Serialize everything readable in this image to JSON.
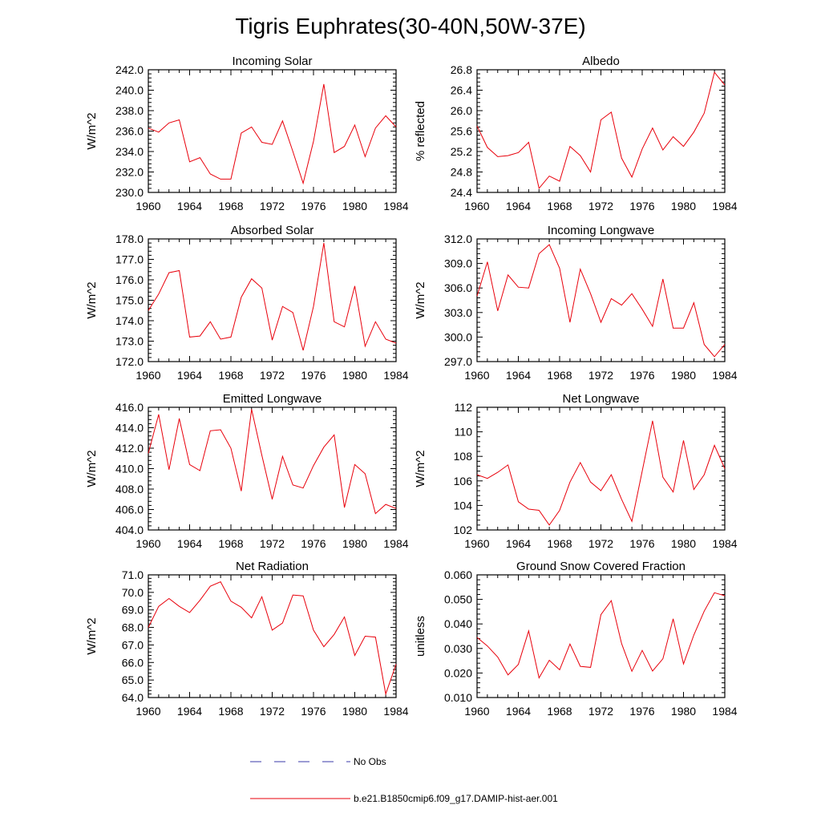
{
  "figure_title": "Tigris Euphrates(30-40N,50W-37E)",
  "legend": [
    {
      "label": "No Obs",
      "color": "#3a3aa8",
      "dash": "dashed"
    },
    {
      "label": "b.e21.B1850cmip6.f09_g17.DAMIP-hist-aer.001",
      "color": "#e8000b",
      "dash": "solid"
    }
  ],
  "series_color": "#e8000b",
  "chart_data": [
    {
      "type": "line",
      "title": "Incoming Solar",
      "ylabel": "W/m^2",
      "xlim": [
        1960,
        1984
      ],
      "ylim": [
        230.0,
        242.0
      ],
      "xticks": [
        1960,
        1964,
        1968,
        1972,
        1976,
        1980,
        1984
      ],
      "yticks": [
        "230.0",
        "232.0",
        "234.0",
        "236.0",
        "238.0",
        "240.0",
        "242.0"
      ],
      "x": [
        1960,
        1961,
        1962,
        1963,
        1964,
        1965,
        1966,
        1967,
        1968,
        1969,
        1970,
        1971,
        1972,
        1973,
        1974,
        1975,
        1976,
        1977,
        1978,
        1979,
        1980,
        1981,
        1982,
        1983,
        1984
      ],
      "values": [
        236.3,
        235.9,
        236.8,
        237.1,
        233.0,
        233.4,
        231.8,
        231.3,
        231.3,
        235.8,
        236.4,
        234.9,
        234.7,
        237.0,
        234.0,
        230.9,
        235.0,
        240.6,
        233.9,
        234.5,
        236.6,
        233.5,
        236.3,
        237.5,
        236.4
      ]
    },
    {
      "type": "line",
      "title": "Albedo",
      "ylabel": "% reflected",
      "xlim": [
        1960,
        1984
      ],
      "ylim": [
        24.4,
        26.8
      ],
      "xticks": [
        1960,
        1964,
        1968,
        1972,
        1976,
        1980,
        1984
      ],
      "yticks": [
        "24.4",
        "24.8",
        "25.2",
        "25.6",
        "26.0",
        "26.4",
        "26.8"
      ],
      "x": [
        1960,
        1961,
        1962,
        1963,
        1964,
        1965,
        1966,
        1967,
        1968,
        1969,
        1970,
        1971,
        1972,
        1973,
        1974,
        1975,
        1976,
        1977,
        1978,
        1979,
        1980,
        1981,
        1982,
        1983,
        1984
      ],
      "values": [
        25.7,
        25.28,
        25.1,
        25.12,
        25.18,
        25.38,
        24.48,
        24.72,
        24.62,
        25.3,
        25.12,
        24.8,
        25.82,
        25.97,
        25.07,
        24.7,
        25.25,
        25.66,
        25.23,
        25.49,
        25.3,
        25.58,
        25.95,
        26.75,
        26.5
      ]
    },
    {
      "type": "line",
      "title": "Absorbed Solar",
      "ylabel": "W/m^2",
      "xlim": [
        1960,
        1984
      ],
      "ylim": [
        172.0,
        178.0
      ],
      "xticks": [
        1960,
        1964,
        1968,
        1972,
        1976,
        1980,
        1984
      ],
      "yticks": [
        "172.0",
        "173.0",
        "174.0",
        "175.0",
        "176.0",
        "177.0",
        "178.0"
      ],
      "x": [
        1960,
        1961,
        1962,
        1963,
        1964,
        1965,
        1966,
        1967,
        1968,
        1969,
        1970,
        1971,
        1972,
        1973,
        1974,
        1975,
        1976,
        1977,
        1978,
        1979,
        1980,
        1981,
        1982,
        1983,
        1984
      ],
      "values": [
        174.5,
        175.3,
        176.35,
        176.45,
        173.2,
        173.25,
        173.95,
        173.1,
        173.2,
        175.15,
        176.05,
        175.6,
        173.05,
        174.7,
        174.4,
        172.55,
        174.7,
        177.8,
        173.95,
        173.7,
        175.7,
        172.75,
        173.95,
        173.1,
        172.9
      ]
    },
    {
      "type": "line",
      "title": "Incoming Longwave",
      "ylabel": "W/m^2",
      "xlim": [
        1960,
        1984
      ],
      "ylim": [
        297.0,
        312.0
      ],
      "xticks": [
        1960,
        1964,
        1968,
        1972,
        1976,
        1980,
        1984
      ],
      "yticks": [
        "297.0",
        "300.0",
        "303.0",
        "306.0",
        "309.0",
        "312.0"
      ],
      "x": [
        1960,
        1961,
        1962,
        1963,
        1964,
        1965,
        1966,
        1967,
        1968,
        1969,
        1970,
        1971,
        1972,
        1973,
        1974,
        1975,
        1976,
        1977,
        1978,
        1979,
        1980,
        1981,
        1982,
        1983,
        1984
      ],
      "values": [
        305.0,
        309.2,
        303.2,
        307.6,
        306.1,
        306.0,
        310.2,
        311.3,
        308.4,
        301.8,
        308.3,
        305.3,
        301.8,
        304.7,
        303.9,
        305.3,
        303.4,
        301.3,
        307.1,
        301.1,
        301.1,
        304.2,
        299.1,
        297.6,
        299.1
      ]
    },
    {
      "type": "line",
      "title": "Emitted Longwave",
      "ylabel": "W/m^2",
      "xlim": [
        1960,
        1984
      ],
      "ylim": [
        404.0,
        416.0
      ],
      "xticks": [
        1960,
        1964,
        1968,
        1972,
        1976,
        1980,
        1984
      ],
      "yticks": [
        "404.0",
        "406.0",
        "408.0",
        "410.0",
        "412.0",
        "414.0",
        "416.0"
      ],
      "x": [
        1960,
        1961,
        1962,
        1963,
        1964,
        1965,
        1966,
        1967,
        1968,
        1969,
        1970,
        1971,
        1972,
        1973,
        1974,
        1975,
        1976,
        1977,
        1978,
        1979,
        1980,
        1981,
        1982,
        1983,
        1984
      ],
      "values": [
        411.5,
        415.3,
        409.9,
        414.9,
        410.4,
        409.8,
        413.7,
        413.8,
        412.0,
        407.8,
        415.8,
        411.3,
        407.0,
        411.2,
        408.4,
        408.1,
        410.3,
        412.1,
        413.3,
        406.2,
        410.4,
        409.5,
        405.6,
        406.5,
        406.1
      ]
    },
    {
      "type": "line",
      "title": "Net Longwave",
      "ylabel": "W/m^2",
      "xlim": [
        1960,
        1984
      ],
      "ylim": [
        102,
        112
      ],
      "xticks": [
        1960,
        1964,
        1968,
        1972,
        1976,
        1980,
        1984
      ],
      "yticks": [
        "102",
        "104",
        "106",
        "108",
        "110",
        "112"
      ],
      "x": [
        1960,
        1961,
        1962,
        1963,
        1964,
        1965,
        1966,
        1967,
        1968,
        1969,
        1970,
        1971,
        1972,
        1973,
        1974,
        1975,
        1976,
        1977,
        1978,
        1979,
        1980,
        1981,
        1982,
        1983,
        1984
      ],
      "values": [
        106.5,
        106.2,
        106.7,
        107.3,
        104.3,
        103.7,
        103.6,
        102.4,
        103.6,
        105.9,
        107.5,
        105.9,
        105.2,
        106.5,
        104.5,
        102.7,
        106.8,
        110.9,
        106.3,
        105.1,
        109.3,
        105.3,
        106.5,
        108.9,
        107.0
      ]
    },
    {
      "type": "line",
      "title": "Net Radiation",
      "ylabel": "W/m^2",
      "xlim": [
        1960,
        1984
      ],
      "ylim": [
        64.0,
        71.0
      ],
      "xticks": [
        1960,
        1964,
        1968,
        1972,
        1976,
        1980,
        1984
      ],
      "yticks": [
        "64.0",
        "65.0",
        "66.0",
        "67.0",
        "68.0",
        "69.0",
        "70.0",
        "71.0"
      ],
      "x": [
        1960,
        1961,
        1962,
        1963,
        1964,
        1965,
        1966,
        1967,
        1968,
        1969,
        1970,
        1971,
        1972,
        1973,
        1974,
        1975,
        1976,
        1977,
        1978,
        1979,
        1980,
        1981,
        1982,
        1983,
        1984
      ],
      "values": [
        68.0,
        69.2,
        69.65,
        69.2,
        68.85,
        69.55,
        70.35,
        70.6,
        69.5,
        69.15,
        68.55,
        69.75,
        67.85,
        68.25,
        69.85,
        69.8,
        67.85,
        66.9,
        67.6,
        68.6,
        66.4,
        67.5,
        67.45,
        64.2,
        65.9
      ]
    },
    {
      "type": "line",
      "title": "Ground Snow Covered Fraction",
      "ylabel": "unitless",
      "xlim": [
        1960,
        1984
      ],
      "ylim": [
        0.01,
        0.06
      ],
      "xticks": [
        1960,
        1964,
        1968,
        1972,
        1976,
        1980,
        1984
      ],
      "yticks": [
        "0.010",
        "0.020",
        "0.030",
        "0.040",
        "0.050",
        "0.060"
      ],
      "x": [
        1960,
        1961,
        1962,
        1963,
        1964,
        1965,
        1966,
        1967,
        1968,
        1969,
        1970,
        1971,
        1972,
        1973,
        1974,
        1975,
        1976,
        1977,
        1978,
        1979,
        1980,
        1981,
        1982,
        1983,
        1984
      ],
      "values": [
        0.0345,
        0.031,
        0.0265,
        0.0192,
        0.0235,
        0.0372,
        0.018,
        0.0252,
        0.0213,
        0.0318,
        0.0227,
        0.0223,
        0.0438,
        0.0495,
        0.032,
        0.0207,
        0.0292,
        0.0208,
        0.0258,
        0.0421,
        0.0237,
        0.0355,
        0.0452,
        0.0527,
        0.0515
      ]
    }
  ]
}
